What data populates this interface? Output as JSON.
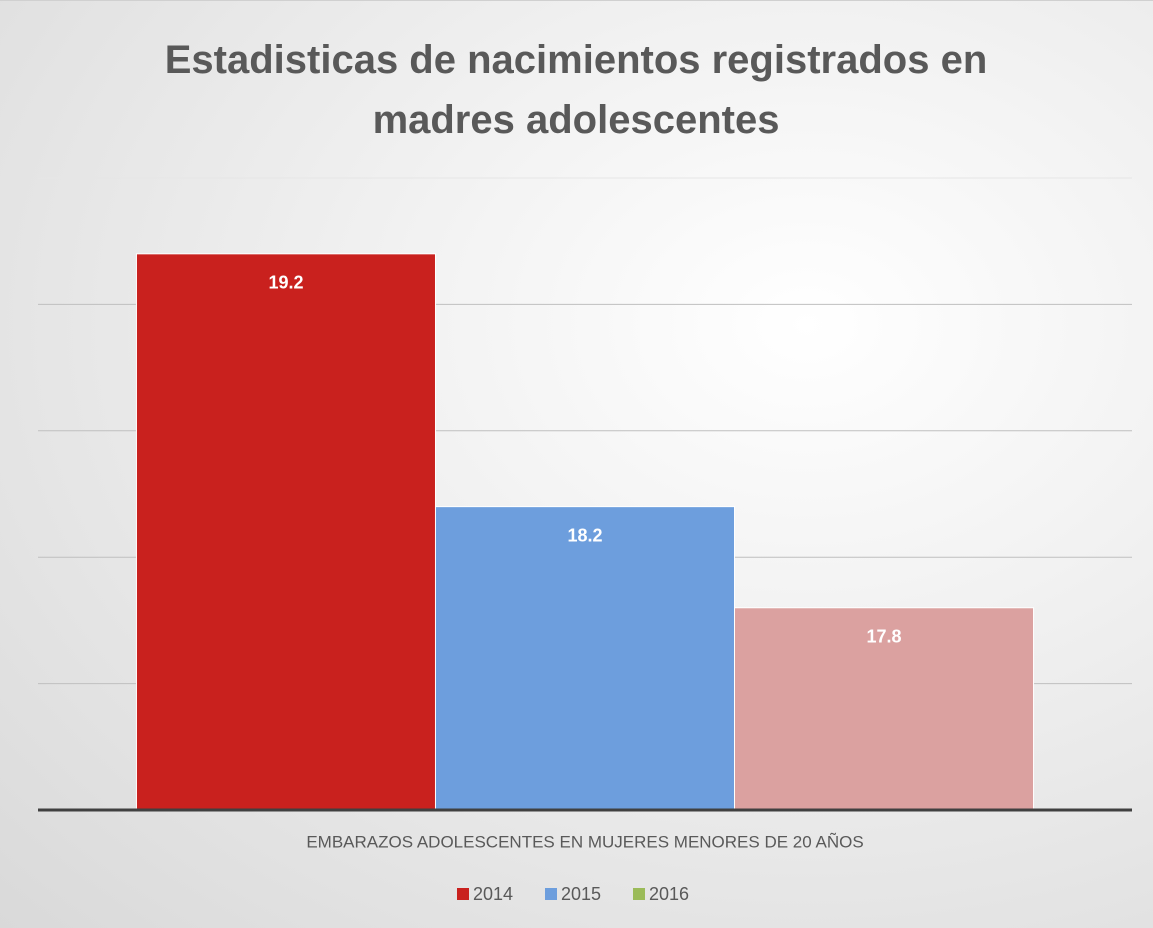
{
  "chart_data": {
    "type": "bar",
    "title": "Estadisticas de nacimientos registrados en madres adolescentes",
    "categories": [
      "EMBARAZOS ADOLESCENTES EN MUJERES MENORES DE 20 AÑOS"
    ],
    "series": [
      {
        "name": "2014",
        "color": "#c9211e",
        "values": [
          19.2
        ]
      },
      {
        "name": "2015",
        "color": "#6d9edd",
        "values": [
          18.2
        ]
      },
      {
        "name": "2016",
        "color": "#dba1a0",
        "legend_color": "#9bbb59",
        "values": [
          17.8
        ]
      }
    ],
    "ylim": [
      17,
      19.5
    ],
    "yticks": [
      17,
      17.5,
      18,
      18.5,
      19,
      19.5
    ],
    "grid": true,
    "legend": "bottom"
  }
}
